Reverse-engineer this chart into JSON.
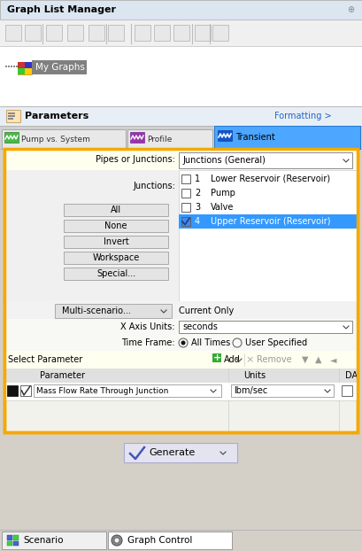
{
  "title": "Graph List Manager",
  "junction_items": [
    {
      "num": "1",
      "name": "Lower Reservoir (Reservoir)",
      "checked": false
    },
    {
      "num": "2",
      "name": "Pump",
      "checked": false
    },
    {
      "num": "3",
      "name": "Valve",
      "checked": false
    },
    {
      "num": "4",
      "name": "Upper Reservoir (Reservoir)",
      "checked": true
    }
  ],
  "buttons": [
    "All",
    "None",
    "Invert",
    "Workspace",
    "Special..."
  ],
  "bottom_tabs": [
    "Scenario",
    "Graph Control"
  ],
  "colors": {
    "window_bg": "#d4d0c8",
    "titlebar_bg": "#dce6f1",
    "toolbar_bg": "#f0f0f0",
    "mygraphs_bg": "#ffffff",
    "mygraphs_item_bg": "#808080",
    "params_bg": "#e8eef5",
    "tab_bar_bg": "#d8d8d8",
    "tab_inactive_bg": "#e8e8e8",
    "tab_green_bg": "#5cb85c",
    "tab_purple_bg": "#9b59b6",
    "tab_active_bg": "#4da6ff",
    "orange_border": "#f5a800",
    "panel_bg": "#f0f0f0",
    "light_yellow_row": "#fffff0",
    "list_bg": "#ffffff",
    "blue_selected": "#3399ff",
    "selected_text": "#ffffff",
    "row_bg": "#f5f5f0",
    "header_row_bg": "#e8e8e0",
    "select_param_bg": "#fffff0",
    "param_header_bg": "#e0e0e0",
    "generate_btn_bg": "#e8e8f0",
    "bottom_tab_bg": "#f0f0f0",
    "bottom_active_tab": "#ffffff",
    "separator": "#c0c0c0",
    "border": "#999999",
    "text_dark": "#000000",
    "text_gray": "#666666",
    "text_blue_link": "#2266cc",
    "checkbox_border": "#606060"
  }
}
